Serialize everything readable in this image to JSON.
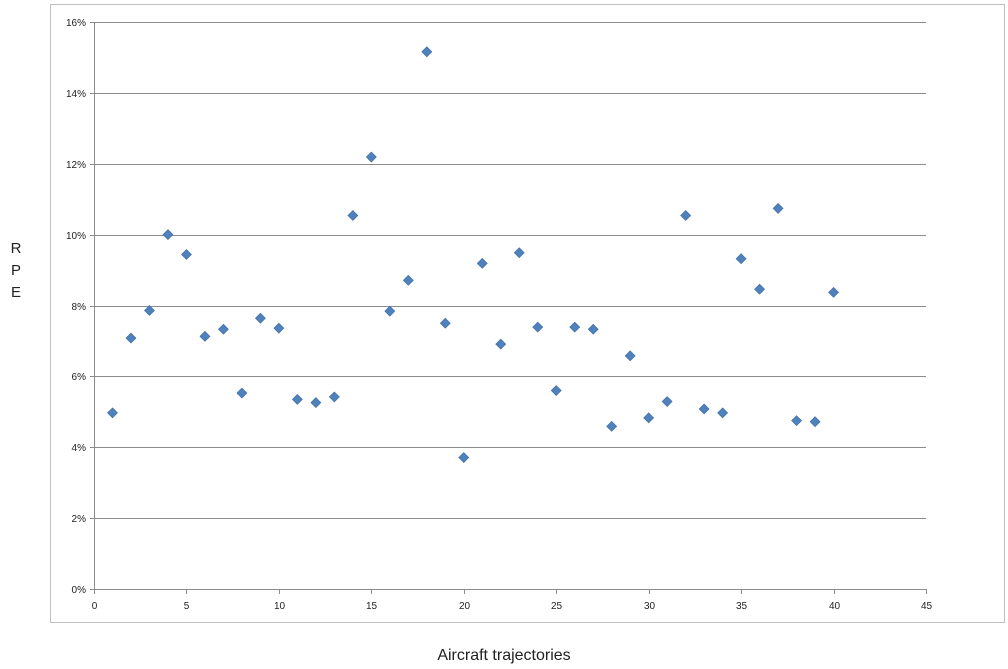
{
  "chart_data": {
    "type": "scatter",
    "title": "",
    "xlabel": "Aircraft trajectories",
    "ylabel": "RPE",
    "xlim": [
      0,
      45
    ],
    "ylim": [
      0,
      0.16
    ],
    "x_ticks": [
      "0",
      "5",
      "10",
      "15",
      "20",
      "25",
      "30",
      "35",
      "40",
      "45"
    ],
    "y_ticks": [
      "0%",
      "2%",
      "4%",
      "6%",
      "8%",
      "10%",
      "12%",
      "14%",
      "16%"
    ],
    "grid": "horizontal",
    "legend": "none",
    "marker": "diamond",
    "marker_color": "#4F81BD",
    "series": [
      {
        "x": [
          1,
          2,
          3,
          4,
          5,
          6,
          7,
          8,
          9,
          10,
          11,
          12,
          13,
          14,
          15,
          16,
          17,
          18,
          19,
          20,
          21,
          22,
          23,
          24,
          25,
          26,
          27,
          28,
          29,
          30,
          31,
          32,
          33,
          34,
          35,
          36,
          37,
          38,
          39,
          40
        ],
        "y": [
          0.0497,
          0.0708,
          0.0786,
          0.1,
          0.0944,
          0.0713,
          0.0733,
          0.0553,
          0.0764,
          0.0736,
          0.0535,
          0.0526,
          0.0542,
          0.1054,
          0.1219,
          0.0784,
          0.0871,
          0.1516,
          0.075,
          0.0371,
          0.0919,
          0.0691,
          0.0949,
          0.0739,
          0.056,
          0.0739,
          0.0733,
          0.0459,
          0.0658,
          0.0483,
          0.0529,
          0.1054,
          0.0508,
          0.0497,
          0.0932,
          0.0846,
          0.1074,
          0.0475,
          0.0472,
          0.0837
        ]
      }
    ]
  }
}
